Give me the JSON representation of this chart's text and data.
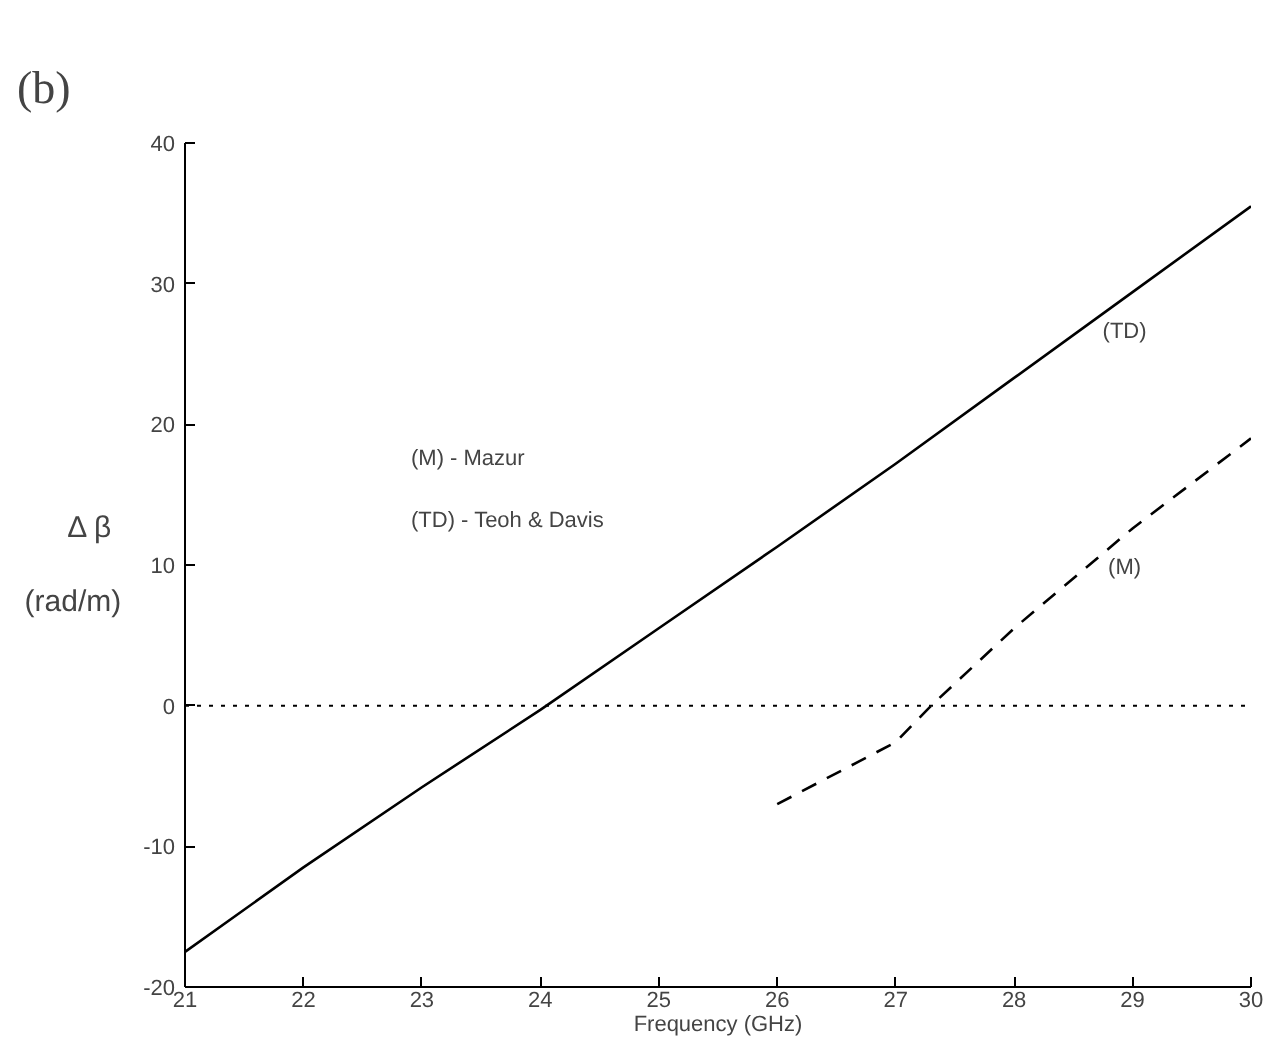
{
  "chart_data": {
    "type": "line",
    "title": "(b)",
    "xlabel": "Frequency (GHz)",
    "ylabel": "Δ  β\n(rad/m)",
    "annotations": [
      "(M) - Mazur",
      "(TD) - Teoh & Davis"
    ],
    "series": [
      {
        "name": "(TD)",
        "color": "#000000",
        "line_style": "solid",
        "x": [
          21,
          22,
          23,
          24,
          25,
          26,
          27,
          28,
          29,
          30
        ],
        "values": [
          -17.5,
          -11.5,
          -5.8,
          -0.3,
          5.5,
          11.3,
          17.2,
          23.3,
          29.4,
          35.5
        ]
      },
      {
        "name": "(M)",
        "color": "#000000",
        "line_style": "dashed",
        "x": [
          26,
          27,
          27.3,
          28,
          29,
          30
        ],
        "values": [
          -7,
          -2.6,
          0,
          5.5,
          12.6,
          19
        ]
      }
    ],
    "xlim": [
      21,
      30
    ],
    "ylim": [
      -20,
      40
    ],
    "xticks": [
      21,
      22,
      23,
      24,
      25,
      26,
      27,
      28,
      29,
      30
    ],
    "yticks": [
      -20,
      -10,
      0,
      10,
      20,
      30,
      40
    ],
    "ref_lines": [
      {
        "axis": "y",
        "value": 0,
        "line_style": "dotted",
        "color": "#000000"
      }
    ],
    "grid": false
  }
}
